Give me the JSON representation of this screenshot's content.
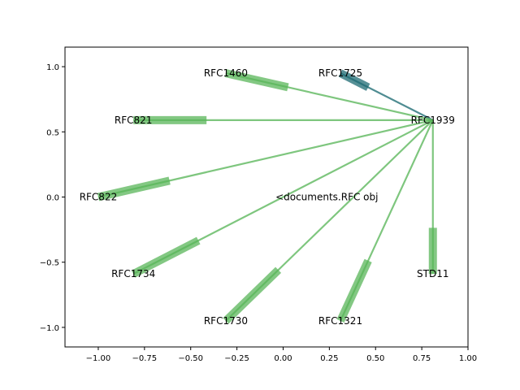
{
  "chart_data": {
    "type": "network-graph",
    "xlim": [
      -1.18,
      1.0
    ],
    "ylim": [
      -1.15,
      1.15
    ],
    "x_ticks": [
      -1.0,
      -0.75,
      -0.5,
      -0.25,
      0.0,
      0.25,
      0.5,
      0.75,
      1.0
    ],
    "x_tick_labels": [
      "−1.00",
      "−0.75",
      "−0.50",
      "−0.25",
      "0.00",
      "0.25",
      "0.50",
      "0.75",
      "1.00"
    ],
    "y_ticks": [
      -1.0,
      -0.5,
      0.0,
      0.5,
      1.0
    ],
    "y_tick_labels": [
      "−1.0",
      "−0.5",
      "0.0",
      "0.5",
      "1.0"
    ],
    "grid": false,
    "colors": {
      "edge": "#5ab65a",
      "highlight_edge": "#1e6b73",
      "axis": "#000000"
    },
    "nodes": [
      {
        "id": "center",
        "label": "RFC1939",
        "x": 0.81,
        "y": 0.59
      },
      {
        "id": "rfc1725",
        "label": "RFC1725",
        "x": 0.31,
        "y": 0.95
      },
      {
        "id": "rfc1460",
        "label": "RFC1460",
        "x": -0.31,
        "y": 0.95
      },
      {
        "id": "rfc821",
        "label": "RFC821",
        "x": -0.81,
        "y": 0.59
      },
      {
        "id": "rfc822",
        "label": "RFC822",
        "x": -1.0,
        "y": 0.0
      },
      {
        "id": "rfc1734",
        "label": "RFC1734",
        "x": -0.81,
        "y": -0.59
      },
      {
        "id": "rfc1730",
        "label": "RFC1730",
        "x": -0.31,
        "y": -0.95
      },
      {
        "id": "rfc1321",
        "label": "RFC1321",
        "x": 0.31,
        "y": -0.95
      },
      {
        "id": "std11",
        "label": "STD11",
        "x": 0.81,
        "y": -0.59
      },
      {
        "id": "docobj",
        "label": "<documents.RFC obj",
        "x": 0.53,
        "y": 0.0
      }
    ],
    "edges": [
      {
        "from": "center",
        "to": "rfc1725",
        "highlight": true
      },
      {
        "from": "center",
        "to": "rfc1460",
        "highlight": false
      },
      {
        "from": "center",
        "to": "rfc821",
        "highlight": false
      },
      {
        "from": "center",
        "to": "rfc822",
        "highlight": false
      },
      {
        "from": "center",
        "to": "rfc1734",
        "highlight": false
      },
      {
        "from": "center",
        "to": "rfc1730",
        "highlight": false
      },
      {
        "from": "center",
        "to": "rfc1321",
        "highlight": false
      },
      {
        "from": "center",
        "to": "std11",
        "highlight": false
      }
    ]
  }
}
